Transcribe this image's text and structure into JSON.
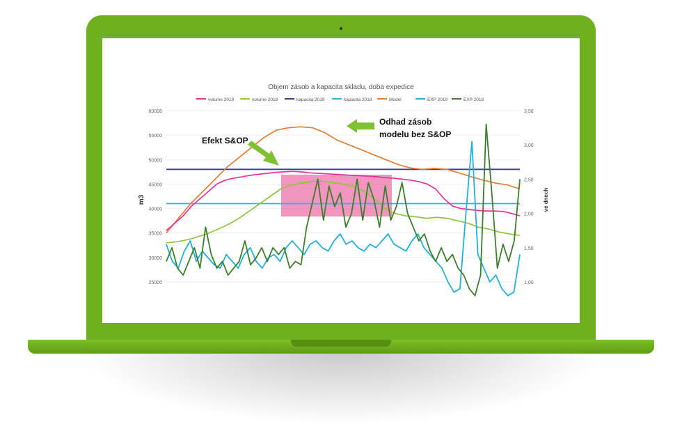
{
  "chart_data": {
    "type": "line",
    "title": "Objem zásob a kapacita skladu, doba expedice",
    "ylabel": "m3",
    "y2label": "ve dnech",
    "ylim": [
      25000,
      60000
    ],
    "y2lim": [
      1.0,
      3.5
    ],
    "yticks": [
      "60000",
      "55000",
      "50000",
      "45000",
      "40000",
      "35000",
      "30000",
      "25000"
    ],
    "y2ticks": [
      "3,50",
      "3,00",
      "2,50",
      "2,00",
      "1,50",
      "1,00"
    ],
    "legend_position": "top",
    "n_points": 100,
    "series": [
      {
        "name": "volume 2019",
        "color": "#e5329a",
        "axis": "left",
        "values": [
          35500,
          37000,
          38500,
          40500,
          42000,
          43500,
          45000,
          45800,
          46200,
          46500,
          46800,
          47000,
          47200,
          47400,
          47500,
          47600,
          47500,
          47300,
          47200,
          47100,
          47000,
          46900,
          46800,
          46700,
          46600,
          46500,
          46300,
          46200,
          46000,
          45800,
          45500,
          45000,
          44000,
          42000,
          40500,
          40000,
          39800,
          39600,
          39500,
          39500,
          39400,
          39000,
          38500
        ]
      },
      {
        "name": "volume 2018",
        "color": "#8cc63f",
        "axis": "left",
        "values": [
          33000,
          33200,
          33600,
          34200,
          34900,
          35800,
          36800,
          38000,
          39500,
          41000,
          42500,
          44000,
          44800,
          45200,
          45500,
          45600,
          45300,
          45000,
          44500,
          43500,
          42000,
          40000,
          39000,
          38500,
          38300,
          38000,
          38200,
          38000,
          37500,
          37000,
          36200,
          35800,
          35200,
          34800,
          34500
        ]
      },
      {
        "name": "kapacita 2019",
        "color": "#3b3f8f",
        "axis": "left",
        "values": [
          48000,
          48000
        ]
      },
      {
        "name": "kapacita 2018",
        "color": "#29b8d6",
        "axis": "left",
        "values": [
          41000,
          41000
        ]
      },
      {
        "name": "Model",
        "color": "#e67e34",
        "axis": "left",
        "values": [
          35000,
          38000,
          41000,
          43500,
          46000,
          48500,
          50500,
          52500,
          54500,
          56000,
          56500,
          56700,
          56500,
          55500,
          54000,
          53000,
          52000,
          51000,
          50000,
          49000,
          48300,
          48000,
          48200,
          48000,
          47300,
          46500,
          45800,
          45200,
          44800,
          44000
        ]
      },
      {
        "name": "EXP 2019",
        "color": "#1fb1dc",
        "axis": "right",
        "values": [
          1.55,
          1.3,
          1.2,
          1.45,
          1.6,
          1.3,
          1.45,
          1.35,
          1.25,
          1.2,
          1.4,
          1.3,
          1.2,
          1.4,
          1.5,
          1.3,
          1.2,
          1.35,
          1.4,
          1.3,
          1.5,
          1.6,
          1.5,
          1.4,
          1.55,
          1.6,
          1.5,
          1.45,
          1.6,
          1.7,
          1.55,
          1.6,
          1.5,
          1.45,
          1.55,
          1.5,
          1.6,
          1.7,
          1.55,
          1.5,
          1.45,
          1.6,
          1.7,
          1.5,
          1.4,
          1.3,
          1.2,
          1.0,
          0.85,
          0.9,
          2.0,
          3.05,
          1.4,
          1.2,
          1.0,
          1.1,
          0.9,
          0.8,
          0.85,
          1.4
        ]
      },
      {
        "name": "EXP 2018",
        "color": "#3c7d2a",
        "axis": "right",
        "values": [
          1.3,
          1.5,
          1.2,
          1.1,
          1.3,
          1.5,
          1.2,
          1.8,
          1.4,
          1.2,
          1.3,
          1.1,
          1.2,
          1.3,
          1.6,
          1.25,
          1.35,
          1.5,
          1.3,
          1.5,
          1.4,
          1.5,
          1.2,
          1.3,
          1.25,
          1.8,
          2.15,
          2.5,
          1.9,
          2.4,
          2.1,
          2.3,
          1.8,
          2.0,
          2.5,
          1.9,
          2.45,
          2.2,
          1.8,
          2.4,
          1.9,
          2.1,
          2.45,
          2.0,
          1.8,
          1.6,
          1.7,
          1.45,
          1.3,
          1.5,
          1.3,
          1.4,
          1.2,
          1.1,
          0.9,
          0.8,
          1.1,
          3.3,
          2.3,
          1.2,
          1.55,
          1.3,
          1.6,
          2.5
        ]
      }
    ],
    "annotations": [
      {
        "text": "Efekt S&OP"
      },
      {
        "lines": [
          "Odhad zásob",
          "modelu bez S&OP"
        ]
      }
    ]
  }
}
